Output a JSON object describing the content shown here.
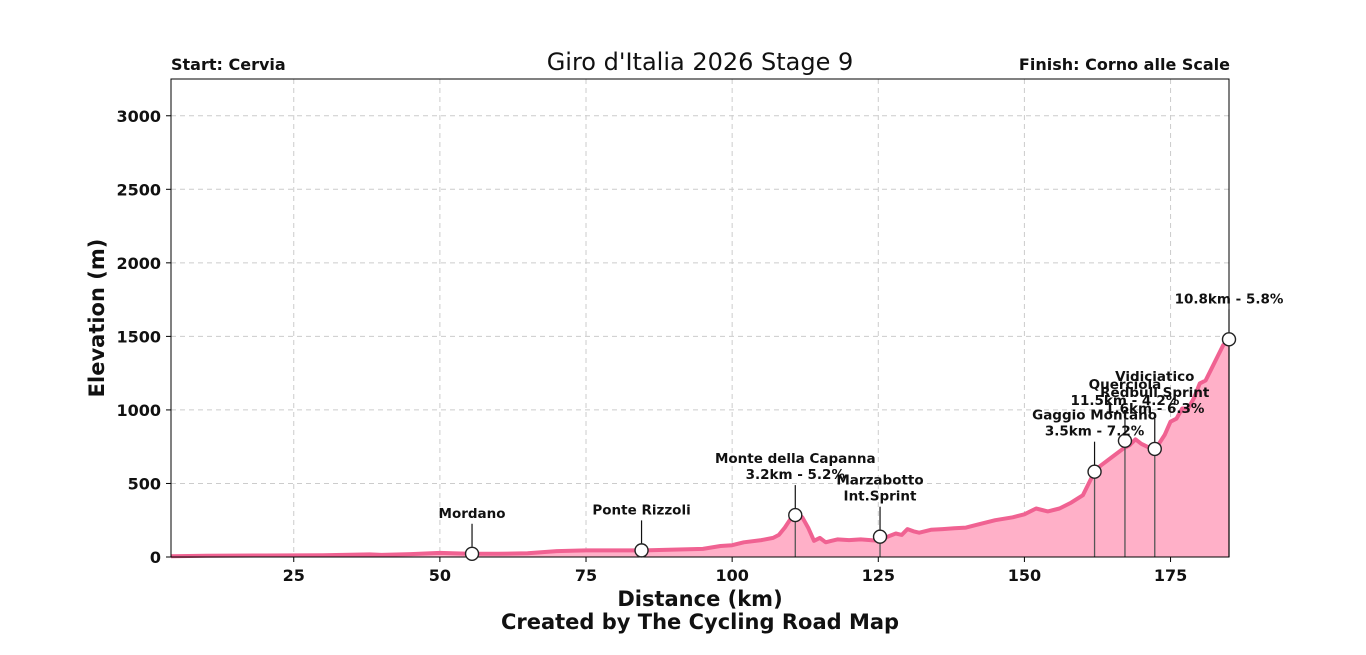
{
  "chart_data": {
    "type": "area",
    "title": "Giro d'Italia 2026 Stage 9",
    "start_label": "Start: Cervia",
    "finish_label": "Finish: Corno alle Scale",
    "xlabel": "Distance (km)",
    "ylabel": "Elevation (m)",
    "credit": "Created by The Cycling Road Map",
    "xlim": [
      4,
      185
    ],
    "ylim": [
      0,
      3250
    ],
    "xticks": [
      25,
      50,
      75,
      100,
      125,
      150,
      175
    ],
    "yticks": [
      0,
      500,
      1000,
      1500,
      2000,
      2500,
      3000
    ],
    "grid": true,
    "colors": {
      "line": "#f06292",
      "fill": "#ffb0c8",
      "marker_stroke": "#222222",
      "marker_fill": "#ffffff",
      "drop_line": "#555555"
    },
    "profile": {
      "x": [
        4,
        10,
        20,
        30,
        38,
        40,
        45,
        50,
        55,
        60,
        65,
        70,
        75,
        80,
        85,
        90,
        95,
        98,
        100,
        102,
        105,
        107,
        108,
        109,
        110,
        111,
        112,
        113,
        114,
        115,
        116,
        117,
        118,
        120,
        122,
        125,
        127,
        128,
        129,
        130,
        131,
        132,
        134,
        136,
        138,
        140,
        142,
        145,
        148,
        150,
        152,
        154,
        156,
        158,
        160,
        161,
        162,
        163,
        165,
        167,
        168,
        169,
        170,
        171,
        172,
        173,
        174,
        175,
        176,
        177,
        178,
        179,
        180,
        181,
        182,
        183,
        184,
        185
      ],
      "y": [
        5,
        8,
        10,
        12,
        18,
        14,
        20,
        28,
        22,
        22,
        25,
        40,
        45,
        45,
        45,
        50,
        55,
        75,
        80,
        100,
        115,
        130,
        150,
        200,
        260,
        300,
        270,
        200,
        110,
        130,
        100,
        110,
        120,
        115,
        120,
        110,
        145,
        160,
        150,
        190,
        175,
        165,
        185,
        190,
        195,
        200,
        220,
        250,
        270,
        290,
        330,
        310,
        330,
        370,
        420,
        500,
        580,
        620,
        680,
        740,
        760,
        800,
        770,
        750,
        730,
        770,
        830,
        920,
        940,
        1010,
        1010,
        1080,
        1180,
        1200,
        1280,
        1360,
        1440,
        1480
      ]
    },
    "points": [
      {
        "x": 55.5,
        "y": 22,
        "label": [
          "Mordano"
        ]
      },
      {
        "x": 84.5,
        "y": 45,
        "label": [
          "Ponte Rizzoli"
        ]
      },
      {
        "x": 110.8,
        "y": 285,
        "label": [
          "Monte della Capanna",
          "3.2km - 5.2%"
        ],
        "drop": true
      },
      {
        "x": 125.3,
        "y": 138,
        "label": [
          "Marzabotto",
          "Int.Sprint"
        ],
        "drop": true
      },
      {
        "x": 162,
        "y": 580,
        "label": [
          "Gaggio Montano",
          "3.5km - 7.2%"
        ],
        "drop": true
      },
      {
        "x": 167.2,
        "y": 790,
        "label": [
          "Querciola",
          "11.5km - 4.2%"
        ],
        "drop": true
      },
      {
        "x": 172.3,
        "y": 735,
        "label": [
          "Vidiciatico",
          "Redbull Sprint",
          "1.6km - 6.3%"
        ],
        "drop": true
      },
      {
        "x": 185,
        "y": 1480,
        "label": [
          "10.8km - 5.8%"
        ],
        "drop": true
      }
    ]
  }
}
